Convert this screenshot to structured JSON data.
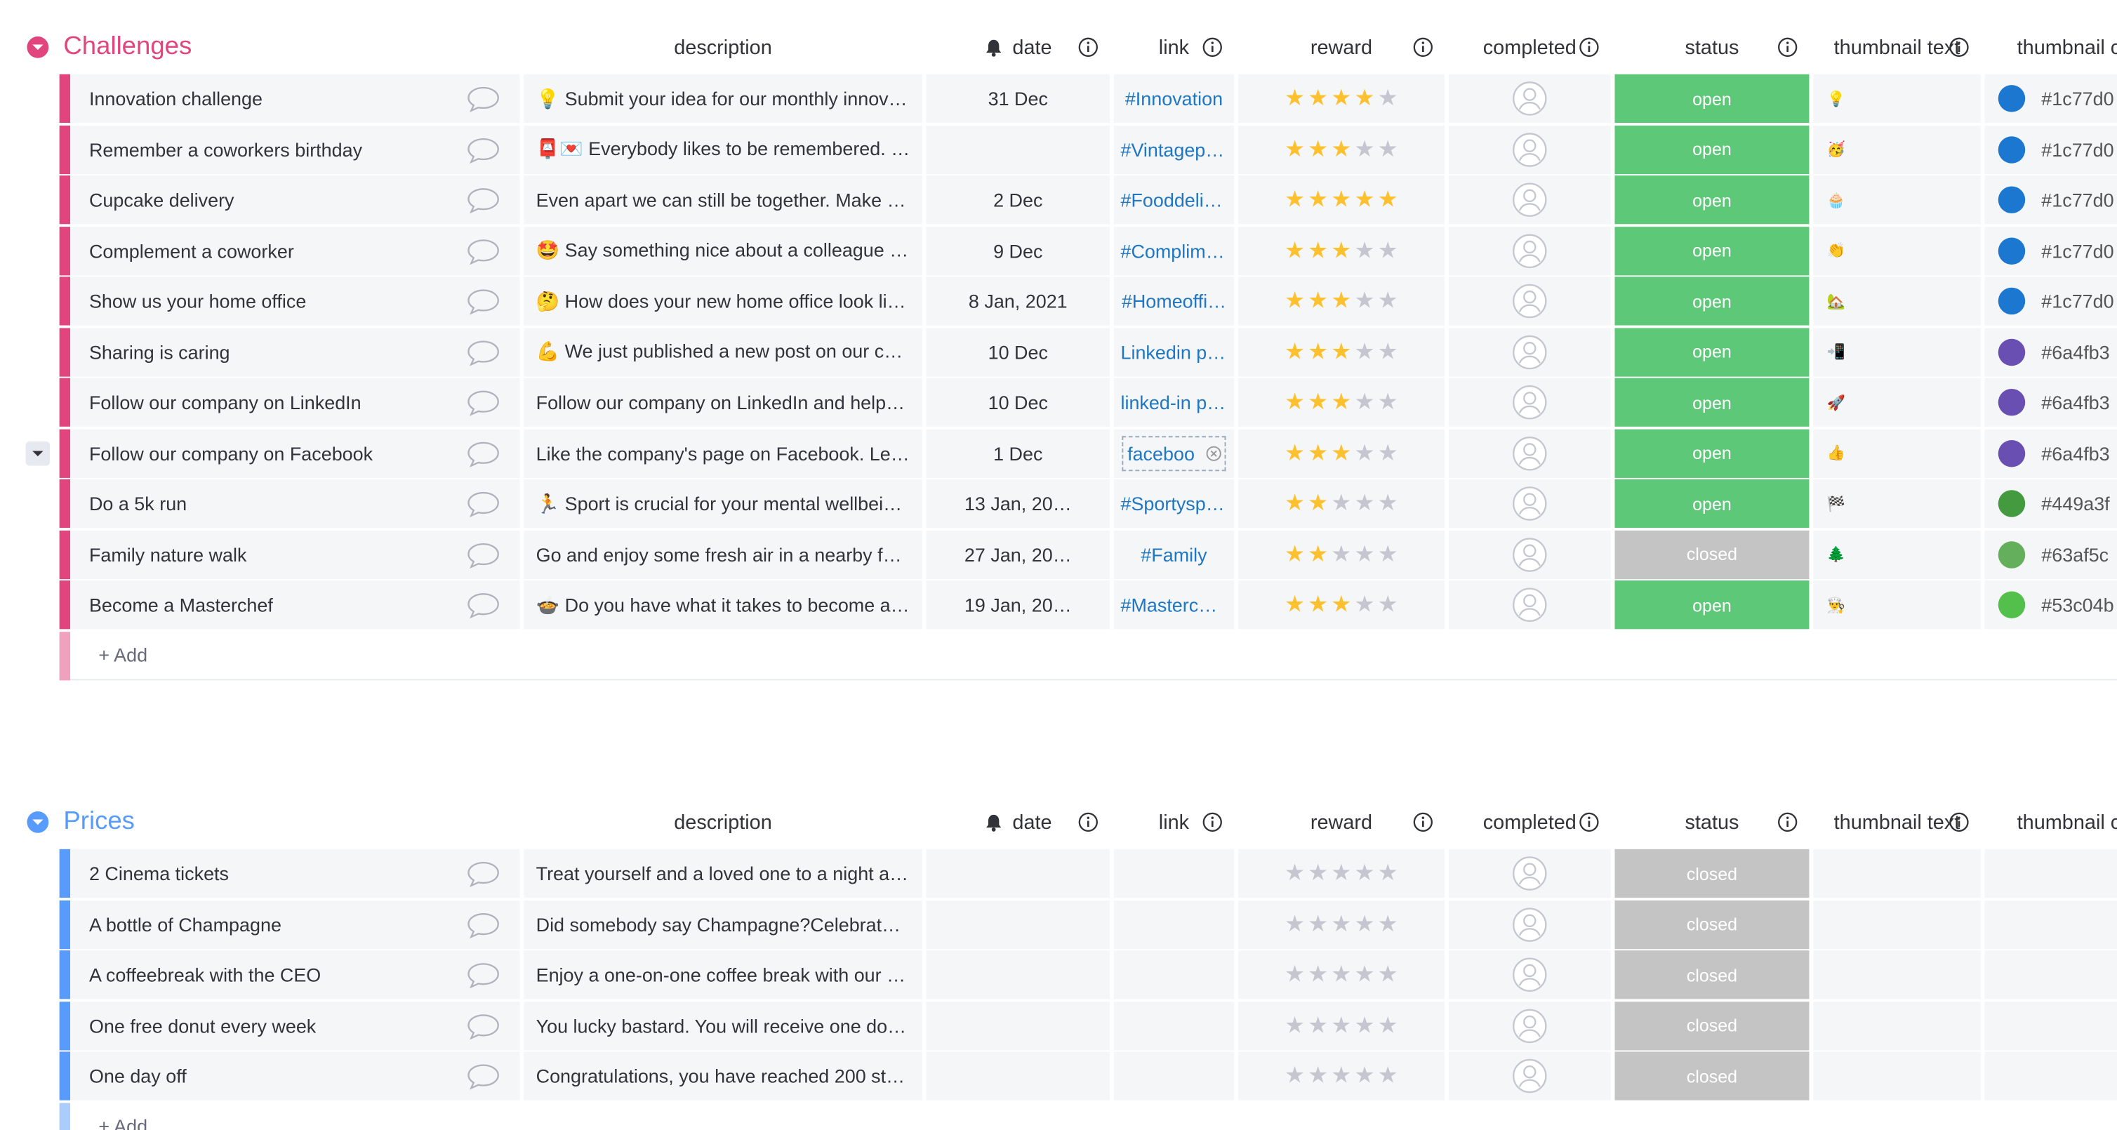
{
  "groups": [
    {
      "title": "Challenges",
      "color": "#e2447e",
      "columns": [
        "description",
        "date",
        "link",
        "reward",
        "completed",
        "status",
        "thumbnail text",
        "thumbnail color"
      ],
      "rows": [
        {
          "name": "Innovation challenge",
          "description": "💡 Submit your idea for our monthly innovati…",
          "date": "31 Dec",
          "link": "#Innovation",
          "reward": 4,
          "status": "open",
          "status_color": "#5cc878",
          "thumbnail_text": "💡",
          "thumbnail_color": "#1c77d0"
        },
        {
          "name": "Remember a coworkers birthday",
          "description": "📮💌 Everybody likes to be remembered. Wh…",
          "date": null,
          "link": "#Vintagepo…",
          "reward": 3,
          "status": "open",
          "status_color": "#5cc878",
          "thumbnail_text": "🥳",
          "thumbnail_color": "#1c77d0"
        },
        {
          "name": "Cupcake delivery",
          "description": "Even apart we can still be together. Make so…",
          "date": "2 Dec",
          "link": "#Fooddeliv…",
          "reward": 5,
          "status": "open",
          "status_color": "#5cc878",
          "thumbnail_text": "🧁",
          "thumbnail_color": "#1c77d0"
        },
        {
          "name": "Complement a coworker",
          "description": "🤩 Say something nice about a colleague in …",
          "date": "9 Dec",
          "link": "#Complime…",
          "reward": 3,
          "status": "open",
          "status_color": "#5cc878",
          "thumbnail_text": "👏",
          "thumbnail_color": "#1c77d0"
        },
        {
          "name": "Show us your home office",
          "description": "🤔 How does your new home office look like…",
          "date": "8 Jan, 2021",
          "link": "#Homeoffi…",
          "reward": 3,
          "status": "open",
          "status_color": "#5cc878",
          "thumbnail_text": "🏡",
          "thumbnail_color": "#1c77d0"
        },
        {
          "name": "Sharing is caring",
          "description": "💪 We just published a new post on our com…",
          "date": "10 Dec",
          "link": "Linkedin po…",
          "reward": 3,
          "status": "open",
          "status_color": "#5cc878",
          "thumbnail_text": "📲",
          "thumbnail_color": "#6a4fb3"
        },
        {
          "name": "Follow our company on LinkedIn",
          "description": "Follow our company on LinkedIn and help us…",
          "date": "10 Dec",
          "link": "linked-in pa…",
          "reward": 3,
          "status": "open",
          "status_color": "#5cc878",
          "thumbnail_text": "🚀",
          "thumbnail_color": "#6a4fb3"
        },
        {
          "name": "Follow our company on Facebook",
          "description": "Like the company's page on Facebook. Let's …",
          "date": "1 Dec",
          "link": "faceboo",
          "reward": 3,
          "status": "open",
          "status_color": "#5cc878",
          "thumbnail_text": "👍",
          "thumbnail_color": "#6a4fb3"
        },
        {
          "name": "Do a 5k run",
          "description": "🏃 Sport is crucial for your mental wellbeing.…",
          "date": "13 Jan, 20…",
          "link": "#Sportyspi…",
          "reward": 2,
          "status": "open",
          "status_color": "#5cc878",
          "thumbnail_text": "🏁",
          "thumbnail_color": "#449a3f"
        },
        {
          "name": "Family nature walk",
          "description": "Go and enjoy some fresh air in a nearby fore…",
          "date": "27 Jan, 20…",
          "link": "#Family",
          "reward": 2,
          "status": "closed",
          "status_color": "#c4c4c4",
          "thumbnail_text": "🌲",
          "thumbnail_color": "#63af5c"
        },
        {
          "name": "Become a Masterchef",
          "description": "🍲 Do you have what it takes to become a M…",
          "date": "19 Jan, 20…",
          "link": "#Masterch…",
          "reward": 3,
          "status": "open",
          "status_color": "#5cc878",
          "thumbnail_text": "👨‍🍳",
          "thumbnail_color": "#53c04b"
        }
      ],
      "add_label": "+ Add"
    },
    {
      "title": "Prices",
      "color": "#579bfc",
      "columns": [
        "description",
        "date",
        "link",
        "reward",
        "completed",
        "status",
        "thumbnail text",
        "thumbnail color"
      ],
      "rows": [
        {
          "name": "2 Cinema tickets",
          "description": "Treat yourself and a loved one to a night at t…",
          "date": null,
          "link": null,
          "reward": 0,
          "status": "closed",
          "status_color": "#c4c4c4",
          "thumbnail_text": null,
          "thumbnail_color": null
        },
        {
          "name": "A bottle of Champagne",
          "description": "Did somebody say Champagne?Celebrate yo…",
          "date": null,
          "link": null,
          "reward": 0,
          "status": "closed",
          "status_color": "#c4c4c4",
          "thumbnail_text": null,
          "thumbnail_color": null
        },
        {
          "name": "A coffeebreak with the CEO",
          "description": "Enjoy a one-on-one coffee break with our CE…",
          "date": null,
          "link": null,
          "reward": 0,
          "status": "closed",
          "status_color": "#c4c4c4",
          "thumbnail_text": null,
          "thumbnail_color": null
        },
        {
          "name": "One free donut every week",
          "description": "You lucky bastard. You will receive one donu…",
          "date": null,
          "link": null,
          "reward": 0,
          "status": "closed",
          "status_color": "#c4c4c4",
          "thumbnail_text": null,
          "thumbnail_color": null
        },
        {
          "name": "One day off",
          "description": "Congratulations, you have reached 200 stars…",
          "date": null,
          "link": null,
          "reward": 0,
          "status": "closed",
          "status_color": "#c4c4c4",
          "thumbnail_text": null,
          "thumbnail_color": null
        }
      ],
      "add_label": "+ Add"
    }
  ]
}
